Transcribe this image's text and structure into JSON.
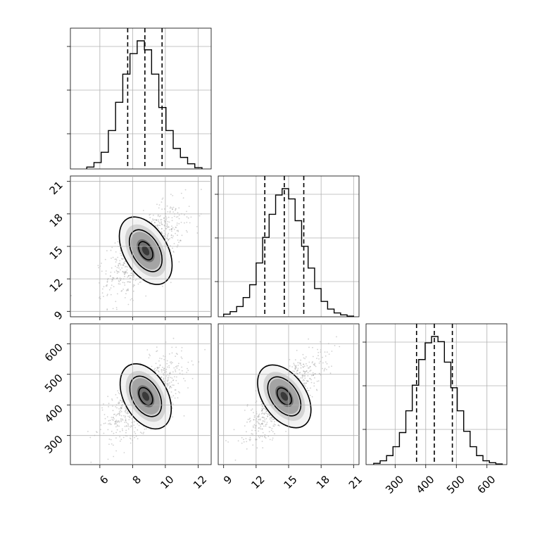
{
  "chart_data": [
    {
      "type": "histogram",
      "panel": "row1-col1",
      "variable": 1,
      "x_range": [
        4.2,
        12.8
      ],
      "bin_edges": [
        5.2,
        5.64,
        6.08,
        6.52,
        6.96,
        7.4,
        7.84,
        8.28,
        8.72,
        9.16,
        9.6,
        10.04,
        10.48,
        10.92,
        11.36,
        11.8,
        12.24
      ],
      "counts": [
        0.015,
        0.05,
        0.13,
        0.3,
        0.52,
        0.74,
        0.9,
        1.0,
        0.93,
        0.74,
        0.48,
        0.3,
        0.16,
        0.09,
        0.04,
        0.01
      ],
      "quantiles": [
        7.7,
        8.75,
        9.8
      ],
      "grid": true
    },
    {
      "type": "histogram",
      "panel": "row2-col2",
      "variable": 2,
      "x_range": [
        8.5,
        21.5
      ],
      "bin_edges": [
        9.0,
        9.6,
        10.2,
        10.8,
        11.4,
        12.0,
        12.6,
        13.2,
        13.8,
        14.4,
        15.0,
        15.6,
        16.2,
        16.8,
        17.4,
        18.0,
        18.6,
        19.2,
        19.8,
        20.4,
        21.0
      ],
      "counts": [
        0.02,
        0.04,
        0.08,
        0.15,
        0.25,
        0.42,
        0.62,
        0.8,
        0.95,
        1.0,
        0.92,
        0.75,
        0.55,
        0.38,
        0.22,
        0.12,
        0.06,
        0.03,
        0.015,
        0.005
      ],
      "quantiles": [
        12.8,
        14.6,
        16.4
      ],
      "grid": true
    },
    {
      "type": "histogram",
      "panel": "row3-col3",
      "variable": 3,
      "x_range": [
        205,
        665
      ],
      "tick_labels": [
        "300",
        "400",
        "500",
        "600"
      ],
      "bin_edges": [
        230,
        251,
        272,
        293,
        314,
        335,
        356,
        377,
        398,
        419,
        440,
        461,
        482,
        503,
        524,
        545,
        566,
        587,
        608,
        629,
        650
      ],
      "counts": [
        0.01,
        0.03,
        0.07,
        0.14,
        0.25,
        0.42,
        0.62,
        0.82,
        0.95,
        1.0,
        0.96,
        0.8,
        0.6,
        0.42,
        0.26,
        0.14,
        0.07,
        0.03,
        0.015,
        0.005
      ],
      "quantiles": [
        370,
        428,
        487
      ],
      "grid": true
    },
    {
      "type": "scatter",
      "panel": "row2-col1",
      "x_variable": 1,
      "y_variable": 2,
      "x_range": [
        4.2,
        12.8
      ],
      "y_range": [
        8.5,
        21.5
      ],
      "x_tick_labels": [
        "6",
        "8",
        "10",
        "12"
      ],
      "y_tick_labels": [
        "9",
        "12",
        "15",
        "18",
        "21"
      ],
      "center": [
        8.8,
        14.6
      ],
      "contour_half_axes": [
        [
          0.55,
          1.1
        ],
        [
          1.3,
          2.4
        ],
        [
          2.15,
          3.7
        ]
      ],
      "grid": true
    },
    {
      "type": "scatter",
      "panel": "row3-col1",
      "x_variable": 1,
      "y_variable": 3,
      "x_range": [
        4.2,
        12.8
      ],
      "y_range": [
        205,
        665
      ],
      "x_tick_labels": [
        "6",
        "8",
        "10",
        "12"
      ],
      "y_tick_labels": [
        "300",
        "400",
        "500",
        "600"
      ],
      "center": [
        8.8,
        428
      ],
      "contour_half_axes": [
        [
          0.55,
          35
        ],
        [
          1.3,
          78
        ],
        [
          2.15,
          125
        ]
      ],
      "grid": true
    },
    {
      "type": "scatter",
      "panel": "row3-col2",
      "x_variable": 2,
      "y_variable": 3,
      "x_range": [
        8.5,
        21.5
      ],
      "y_range": [
        205,
        665
      ],
      "x_tick_labels": [
        "9",
        "12",
        "15",
        "18",
        "21"
      ],
      "center": [
        14.6,
        428
      ],
      "contour_half_axes": [
        [
          0.8,
          35
        ],
        [
          1.9,
          78
        ],
        [
          3.2,
          125
        ]
      ],
      "grid": true
    }
  ]
}
